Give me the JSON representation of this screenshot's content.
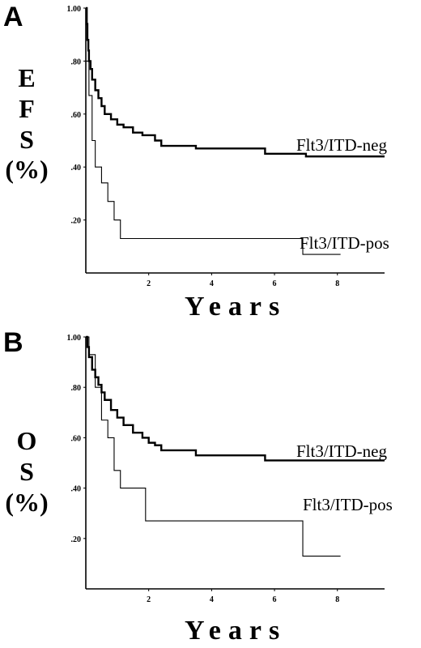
{
  "chart_data": [
    {
      "panel_letter": "A",
      "type": "line",
      "step": true,
      "ylabel_lines": [
        "E",
        "F",
        "S",
        "(%)"
      ],
      "xlabel": "Years",
      "xlim": [
        0,
        9.5
      ],
      "ylim": [
        0,
        1.0
      ],
      "x_ticks": [
        2,
        4,
        6,
        8
      ],
      "x_tick_labels": [
        "2",
        "4",
        "6",
        "8"
      ],
      "y_ticks": [
        0.2,
        0.4,
        0.6,
        0.8,
        1.0
      ],
      "y_tick_labels": [
        ".20",
        ".40",
        ".60",
        ".80",
        "1.00"
      ],
      "grid": false,
      "series": [
        {
          "name": "Flt3/ITD-neg",
          "line_weight": "thick",
          "x": [
            0,
            0.03,
            0.05,
            0.08,
            0.1,
            0.15,
            0.2,
            0.3,
            0.4,
            0.5,
            0.6,
            0.8,
            1.0,
            1.2,
            1.5,
            1.8,
            2.2,
            2.4,
            3.0,
            3.5,
            4.5,
            5.7,
            6.5,
            7.0,
            9.5
          ],
          "y": [
            1.0,
            0.94,
            0.88,
            0.84,
            0.8,
            0.77,
            0.73,
            0.69,
            0.66,
            0.63,
            0.6,
            0.58,
            0.56,
            0.55,
            0.53,
            0.52,
            0.5,
            0.48,
            0.48,
            0.47,
            0.47,
            0.45,
            0.45,
            0.44,
            0.44
          ]
        },
        {
          "name": "Flt3/ITD-pos",
          "line_weight": "thin",
          "x": [
            0,
            0.1,
            0.2,
            0.3,
            0.5,
            0.7,
            0.9,
            1.1,
            6.9,
            8.1
          ],
          "y": [
            0.8,
            0.67,
            0.5,
            0.4,
            0.34,
            0.27,
            0.2,
            0.13,
            0.07,
            0.07
          ]
        }
      ]
    },
    {
      "panel_letter": "B",
      "type": "line",
      "step": true,
      "ylabel_lines": [
        "O",
        "S",
        "(%)"
      ],
      "xlabel": "Years",
      "xlim": [
        0,
        9.5
      ],
      "ylim": [
        0,
        1.0
      ],
      "x_ticks": [
        2,
        4,
        6,
        8
      ],
      "x_tick_labels": [
        "2",
        "4",
        "6",
        "8"
      ],
      "y_ticks": [
        0.2,
        0.4,
        0.6,
        0.8,
        1.0
      ],
      "y_tick_labels": [
        ".20",
        ".40",
        ".60",
        ".80",
        "1.00"
      ],
      "grid": false,
      "series": [
        {
          "name": "Flt3/ITD-neg",
          "line_weight": "thick",
          "x": [
            0,
            0.05,
            0.1,
            0.2,
            0.3,
            0.4,
            0.5,
            0.6,
            0.8,
            1.0,
            1.2,
            1.5,
            1.8,
            2.0,
            2.2,
            2.4,
            3.0,
            3.5,
            4.5,
            5.7,
            6.5,
            9.5
          ],
          "y": [
            1.0,
            0.96,
            0.92,
            0.87,
            0.84,
            0.81,
            0.78,
            0.75,
            0.71,
            0.68,
            0.65,
            0.62,
            0.6,
            0.58,
            0.57,
            0.55,
            0.55,
            0.53,
            0.53,
            0.51,
            0.51,
            0.51
          ]
        },
        {
          "name": "Flt3/ITD-pos",
          "line_weight": "thin",
          "x": [
            0,
            0.1,
            0.3,
            0.5,
            0.7,
            0.9,
            1.1,
            1.9,
            6.9,
            8.1
          ],
          "y": [
            1.0,
            0.93,
            0.8,
            0.67,
            0.6,
            0.47,
            0.4,
            0.27,
            0.13,
            0.13
          ]
        }
      ]
    }
  ]
}
